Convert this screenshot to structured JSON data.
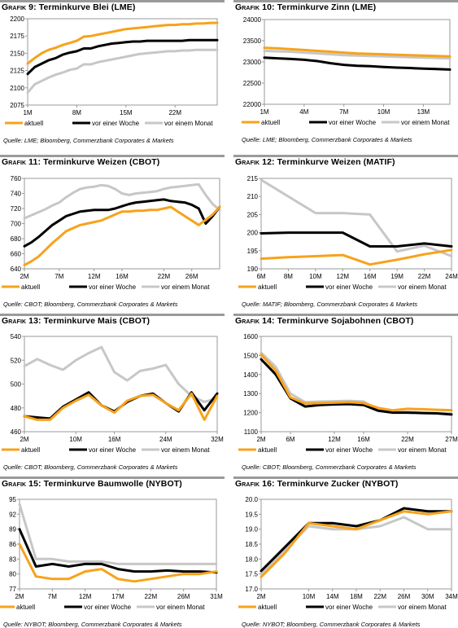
{
  "series_names": [
    "aktuell",
    "vor einer Woche",
    "vor einem Monat"
  ],
  "colors": {
    "aktuell": "#f7a21b",
    "vor_einer_woche": "#000000",
    "vor_einem_monat": "#c7c7c7",
    "frame": "#9a9a9a"
  },
  "chart_data": [
    {
      "id": "g9",
      "type": "line",
      "label_prefix": "Grafik 9:",
      "title": "Terminkurve Blei (LME)",
      "source": "Quelle: LME; Bloomberg, Commerzbank Corporates & Markets",
      "x_ticks": [
        "1M",
        "8M",
        "15M",
        "22M"
      ],
      "y_ticks": [
        "2075",
        "2100",
        "2125",
        "2150",
        "2175",
        "2200"
      ],
      "ylim": [
        2075,
        2200
      ],
      "xcount": 28,
      "tick_idx": [
        0,
        7,
        14,
        21
      ],
      "series": [
        {
          "name": "aktuell",
          "values": [
            2135,
            2143,
            2150,
            2155,
            2158,
            2162,
            2165,
            2168,
            2174,
            2175,
            2177,
            2179,
            2181,
            2183,
            2185,
            2186,
            2187,
            2188,
            2189,
            2190,
            2191,
            2191,
            2192,
            2192,
            2193,
            2193,
            2194,
            2194
          ]
        },
        {
          "name": "vor einer Woche",
          "values": [
            2120,
            2130,
            2135,
            2140,
            2143,
            2148,
            2151,
            2153,
            2157,
            2157,
            2160,
            2162,
            2164,
            2165,
            2166,
            2167,
            2167,
            2168,
            2168,
            2168,
            2168,
            2168,
            2168,
            2169,
            2169,
            2169,
            2169,
            2169
          ]
        },
        {
          "name": "vor einem Monat",
          "values": [
            2093,
            2105,
            2110,
            2115,
            2119,
            2122,
            2126,
            2128,
            2134,
            2134,
            2137,
            2139,
            2141,
            2143,
            2145,
            2147,
            2149,
            2150,
            2151,
            2152,
            2153,
            2153,
            2154,
            2154,
            2155,
            2155,
            2155,
            2155
          ]
        }
      ]
    },
    {
      "id": "g10",
      "type": "line",
      "label_prefix": "Grafik 10:",
      "title": "Terminkurve Zinn (LME)",
      "source": "Quelle: LME; Bloomberg, Commerzbank Corporates & Markets",
      "x_ticks": [
        "1M",
        "4M",
        "7M",
        "10M",
        "13M"
      ],
      "y_ticks": [
        "22000",
        "22500",
        "23000",
        "23500",
        "24000"
      ],
      "ylim": [
        22000,
        24000
      ],
      "xcount": 15,
      "tick_idx": [
        0,
        3,
        6,
        9,
        12
      ],
      "series": [
        {
          "name": "aktuell",
          "values": [
            23330,
            23320,
            23300,
            23280,
            23260,
            23240,
            23220,
            23200,
            23190,
            23180,
            23170,
            23160,
            23150,
            23140,
            23130
          ]
        },
        {
          "name": "vor einer Woche",
          "values": [
            23100,
            23085,
            23070,
            23050,
            23020,
            22970,
            22930,
            22910,
            22900,
            22880,
            22865,
            22855,
            22840,
            22830,
            22820
          ]
        },
        {
          "name": "vor einem Monat",
          "values": [
            23260,
            23250,
            23240,
            23220,
            23200,
            23180,
            23160,
            23150,
            23140,
            23130,
            23120,
            23110,
            23100,
            23090,
            23080
          ]
        }
      ]
    },
    {
      "id": "g11",
      "type": "line",
      "label_prefix": "Grafik 11:",
      "title": "Terminkurve Weizen (CBOT)",
      "source": "Quelle: CBOT; Bloomberg, Commerzbank Corporates & Markets",
      "x_ticks": [
        "2M",
        "7M",
        "12M",
        "16M",
        "22M",
        "26M"
      ],
      "y_ticks": [
        "640",
        "660",
        "680",
        "700",
        "720",
        "740",
        "760"
      ],
      "ylim": [
        640,
        760
      ],
      "xcount": 29,
      "tick_idx": [
        0,
        5,
        10,
        14,
        20,
        24
      ],
      "series": [
        {
          "name": "aktuell",
          "values": [
            645,
            650,
            656,
            665,
            674,
            682,
            690,
            694,
            698,
            700,
            702,
            704,
            708,
            712,
            716,
            716,
            717,
            717,
            718,
            718,
            720,
            722,
            716,
            710,
            704,
            698,
            705,
            712,
            722
          ]
        },
        {
          "name": "vor einer Woche",
          "values": [
            670,
            675,
            682,
            690,
            698,
            704,
            710,
            713,
            716,
            717,
            718,
            718,
            718,
            720,
            723,
            726,
            728,
            729,
            730,
            731,
            732,
            730,
            729,
            728,
            725,
            720,
            700,
            710,
            722
          ]
        },
        {
          "name": "vor einem Monat",
          "values": [
            707,
            711,
            715,
            719,
            724,
            728,
            735,
            741,
            746,
            748,
            749,
            751,
            750,
            746,
            740,
            738,
            740,
            741,
            742,
            743,
            746,
            748,
            749,
            750,
            751,
            752,
            738,
            726,
            718
          ]
        }
      ]
    },
    {
      "id": "g12",
      "type": "line",
      "label_prefix": "Grafik 12:",
      "title": "Terminkurve Weizen (MATIF)",
      "source": "Quelle: MATIF; Bloomberg, Commerzbank Corporates & Markets",
      "x_ticks": [
        "6M",
        "8M",
        "10M",
        "12M",
        "16M",
        "19M",
        "22M",
        "24M"
      ],
      "y_ticks": [
        "190",
        "195",
        "200",
        "205",
        "210",
        "215"
      ],
      "ylim": [
        190,
        215
      ],
      "xcount": 8,
      "tick_idx": [
        0,
        1,
        2,
        3,
        4,
        5,
        6,
        7
      ],
      "series": [
        {
          "name": "aktuell",
          "values": [
            192.8,
            193.2,
            193.5,
            193.8,
            191.2,
            192.5,
            194.0,
            195.2
          ]
        },
        {
          "name": "vor einer Woche",
          "values": [
            199.8,
            200.0,
            200.0,
            200.0,
            196.2,
            196.2,
            197.0,
            196.2
          ]
        },
        {
          "name": "vor einem Monat",
          "values": [
            214.6,
            210.0,
            205.4,
            205.4,
            205.0,
            194.8,
            196.4,
            193.5
          ]
        }
      ]
    },
    {
      "id": "g13",
      "type": "line",
      "label_prefix": "Grafik 13:",
      "title": "Terminkurve Mais (CBOT)",
      "source": "Quelle: CBOT; Bloomberg, Commerzbank Corporates & Markets",
      "x_ticks": [
        "2M",
        "10M",
        "16M",
        "24M",
        "32M"
      ],
      "y_ticks": [
        "460",
        "480",
        "500",
        "520",
        "540"
      ],
      "ylim": [
        460,
        540
      ],
      "xcount": 16,
      "tick_idx": [
        0,
        4,
        7,
        11,
        15
      ],
      "series": [
        {
          "name": "aktuell",
          "values": [
            473,
            470,
            470,
            480,
            486,
            491,
            482,
            476,
            486,
            490,
            491,
            484,
            478,
            492,
            470,
            490
          ]
        },
        {
          "name": "vor einer Woche",
          "values": [
            473,
            472,
            471,
            481,
            487,
            493,
            482,
            477,
            485,
            490,
            492,
            484,
            477,
            493,
            478,
            492
          ]
        },
        {
          "name": "vor einem Monat",
          "values": [
            515,
            521,
            516,
            512,
            520,
            526,
            531,
            510,
            503,
            511,
            513,
            516,
            500,
            490,
            485,
            488
          ]
        }
      ]
    },
    {
      "id": "g14",
      "type": "line",
      "label_prefix": "Grafik 14:",
      "title": "Terminkurve Sojabohnen (CBOT)",
      "source": "Quelle: CBOT; Bloomberg, Commerzbank Corporates & Markets",
      "x_ticks": [
        "2M",
        "6M",
        "12M",
        "16M",
        "22M",
        "27M"
      ],
      "y_ticks": [
        "1100",
        "1200",
        "1300",
        "1400",
        "1500",
        "1600"
      ],
      "ylim": [
        1100,
        1600
      ],
      "xcount": 14,
      "tick_idx": [
        0,
        2,
        5,
        7,
        10,
        13
      ],
      "series": [
        {
          "name": "aktuell",
          "values": [
            1505,
            1420,
            1280,
            1248,
            1250,
            1252,
            1255,
            1250,
            1225,
            1212,
            1220,
            1218,
            1215,
            1213
          ]
        },
        {
          "name": "vor einer Woche",
          "values": [
            1480,
            1400,
            1275,
            1232,
            1240,
            1243,
            1245,
            1240,
            1210,
            1200,
            1200,
            1198,
            1196,
            1190
          ]
        },
        {
          "name": "vor einem Monat",
          "values": [
            1515,
            1440,
            1300,
            1255,
            1258,
            1260,
            1262,
            1258,
            1215,
            1205,
            1205,
            1200,
            1198,
            1196
          ]
        }
      ]
    },
    {
      "id": "g15",
      "type": "line",
      "label_prefix": "Grafik 15:",
      "title": "Terminkurve Baumwolle (NYBOT)",
      "source": "Quelle: NYBOT; Bloomberg, Commerzbank Corporates & Markets",
      "x_ticks": [
        "2M",
        "7M",
        "12M",
        "17M",
        "22M",
        "26M",
        "31M"
      ],
      "y_ticks": [
        "77",
        "80",
        "83",
        "86",
        "89",
        "92",
        "95"
      ],
      "ylim": [
        77,
        95
      ],
      "xcount": 13,
      "tick_idx": [
        0,
        2,
        4,
        6,
        8,
        10,
        12
      ],
      "series": [
        {
          "name": "aktuell",
          "values": [
            86.0,
            79.5,
            79.0,
            79.0,
            80.5,
            81.0,
            79.0,
            78.5,
            79.0,
            79.5,
            80.0,
            80.0,
            80.5
          ]
        },
        {
          "name": "vor einer Woche",
          "values": [
            89.0,
            81.5,
            82.0,
            81.5,
            82.0,
            82.0,
            81.0,
            80.5,
            80.5,
            80.7,
            80.5,
            80.5,
            80.3
          ]
        },
        {
          "name": "vor einem Monat",
          "values": [
            94.0,
            83.0,
            83.0,
            82.5,
            82.5,
            82.5,
            82.0,
            82.0,
            82.0,
            82.0,
            82.0,
            82.0,
            82.0
          ]
        }
      ]
    },
    {
      "id": "g16",
      "type": "line",
      "label_prefix": "Grafik 16:",
      "title": "Terminkurve Zucker (NYBOT)",
      "source": "Quelle: NYBOT; Bloomberg, Commerzbank Corporates & Markets",
      "x_ticks": [
        "2M",
        "10M",
        "14M",
        "18M",
        "22M",
        "26M",
        "30M",
        "34M"
      ],
      "y_ticks": [
        "17.0",
        "17.5",
        "18.0",
        "18.5",
        "19.0",
        "19.5",
        "20.0"
      ],
      "ylim": [
        17.0,
        20.0
      ],
      "xcount": 9,
      "tick_idx": [
        0,
        2,
        3,
        4,
        5,
        6,
        7,
        8
      ],
      "series": [
        {
          "name": "aktuell",
          "values": [
            17.4,
            18.2,
            19.2,
            19.1,
            19.0,
            19.3,
            19.6,
            19.5,
            19.6
          ]
        },
        {
          "name": "vor einer Woche",
          "values": [
            17.6,
            18.4,
            19.2,
            19.2,
            19.1,
            19.3,
            19.7,
            19.6,
            19.6
          ]
        },
        {
          "name": "vor einem Monat",
          "values": [
            17.5,
            18.3,
            19.1,
            19.0,
            19.0,
            19.1,
            19.4,
            19.0,
            19.0
          ]
        }
      ]
    }
  ]
}
